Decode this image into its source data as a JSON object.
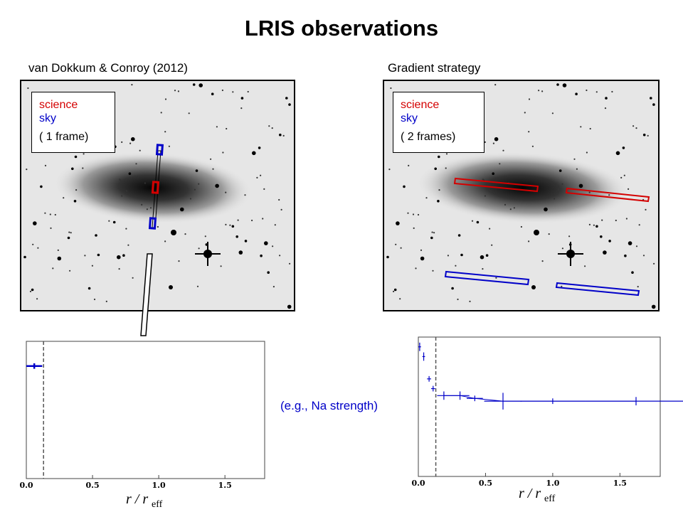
{
  "title": "LRIS observations",
  "left": {
    "heading": "van Dokkum & Conroy (2012)",
    "legend": {
      "science": "science",
      "sky": "sky",
      "frames": "( 1 frame)"
    }
  },
  "right": {
    "heading": "Gradient strategy",
    "legend": {
      "science": "science",
      "sky": "sky",
      "frames": "( 2 frames)"
    }
  },
  "annotation": "(e.g., Na strength)",
  "colors": {
    "science": "#d40000",
    "sky": "#0000c8",
    "outline": "#000000"
  },
  "chart_data": [
    {
      "type": "scatter",
      "x_ticks": [
        "0.0",
        "0.5",
        "1.0",
        "1.5"
      ],
      "xlabel_main": "r / r",
      "xlabel_sub": "eff",
      "xlim": [
        0,
        1.8
      ],
      "dashed_line_x": 0.13,
      "series": [
        {
          "points": [
            {
              "x": 0.06,
              "y": 0.82,
              "xerr": 0.06,
              "yerr": 0.02
            }
          ]
        }
      ]
    },
    {
      "type": "scatter",
      "x_ticks": [
        "0.0",
        "0.5",
        "1.0",
        "1.5"
      ],
      "xlabel_main": "r / r",
      "xlabel_sub": "eff",
      "xlim": [
        0,
        1.8
      ],
      "dashed_line_x": 0.13,
      "series": [
        {
          "points": [
            {
              "x": 0.01,
              "y": 0.93,
              "xerr": 0.01,
              "yerr": 0.03
            },
            {
              "x": 0.04,
              "y": 0.86,
              "xerr": 0.01,
              "yerr": 0.03
            },
            {
              "x": 0.08,
              "y": 0.7,
              "xerr": 0.015,
              "yerr": 0.02
            },
            {
              "x": 0.11,
              "y": 0.63,
              "xerr": 0.015,
              "yerr": 0.02
            },
            {
              "x": 0.19,
              "y": 0.58,
              "xerr": 0.05,
              "yerr": 0.03
            },
            {
              "x": 0.31,
              "y": 0.58,
              "xerr": 0.07,
              "yerr": 0.03
            },
            {
              "x": 0.42,
              "y": 0.56,
              "xerr": 0.06,
              "yerr": 0.02
            },
            {
              "x": 0.63,
              "y": 0.54,
              "xerr": 0.14,
              "yerr": 0.06
            },
            {
              "x": 1.0,
              "y": 0.54,
              "xerr": 0.24,
              "yerr": 0.02
            },
            {
              "x": 1.62,
              "y": 0.54,
              "xerr": 0.38,
              "yerr": 0.03
            }
          ]
        }
      ]
    }
  ]
}
